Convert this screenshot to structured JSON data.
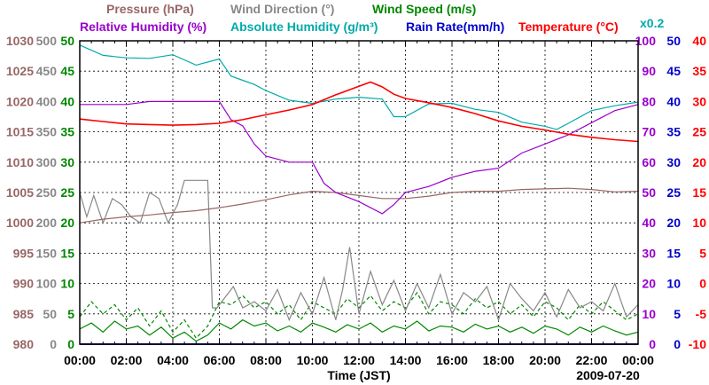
{
  "chart_data": {
    "type": "line",
    "date": "2009-07-20",
    "xlabel": "Time (JST)",
    "x_ticks": [
      "00:00",
      "02:00",
      "04:00",
      "06:00",
      "08:00",
      "10:00",
      "12:00",
      "14:00",
      "16:00",
      "18:00",
      "20:00",
      "22:00",
      "00:00"
    ],
    "x_range_hours": [
      0,
      24
    ],
    "legend_row1": [
      {
        "text": "Pressure (hPa)",
        "color": "#996666"
      },
      {
        "text": "Wind Direction (°)",
        "color": "#888888"
      },
      {
        "text": "Wind Speed (m/s)",
        "color": "#008800"
      }
    ],
    "legend_row2": [
      {
        "text": "Relative Humidity (%)",
        "color": "#9900cc"
      },
      {
        "text": "Absolute Humidity (g/m³)",
        "color": "#00aaaa"
      },
      {
        "text": "Rain Rate(mm/h)",
        "color": "#0000cc"
      },
      {
        "text": "Temperature (°C)",
        "color": "#ff0000"
      }
    ],
    "absolute_humidity_scale_note": "x0.2",
    "axes": [
      {
        "name": "pressure",
        "label": "Pressure (hPa)",
        "color": "#996666",
        "range": [
          980,
          1030
        ],
        "ticks": [
          "980",
          "985",
          "990",
          "995",
          "1000",
          "1005",
          "1010",
          "1015",
          "1020",
          "1025",
          "1030"
        ]
      },
      {
        "name": "wind_direction",
        "label": "Wind Direction (°)",
        "color": "#888888",
        "range": [
          0,
          500
        ],
        "ticks": [
          "0",
          "50",
          "100",
          "150",
          "200",
          "250",
          "300",
          "350",
          "400",
          "450",
          "500"
        ]
      },
      {
        "name": "wind_speed",
        "label": "Wind Speed (m/s)",
        "color": "#008800",
        "range": [
          0,
          50
        ],
        "ticks": [
          "0",
          "5",
          "10",
          "15",
          "20",
          "25",
          "30",
          "35",
          "40",
          "45",
          "50"
        ]
      },
      {
        "name": "relative_humidity",
        "label": "Relative Humidity (%)",
        "color": "#9900cc",
        "range": [
          0,
          100
        ],
        "ticks": [
          "0",
          "10",
          "20",
          "30",
          "40",
          "50",
          "60",
          "70",
          "80",
          "90",
          "100"
        ]
      },
      {
        "name": "rain_rate",
        "label": "Rain Rate (mm/h)",
        "color": "#0000cc",
        "range": [
          0,
          50
        ],
        "ticks": [
          "0",
          "5",
          "10",
          "15",
          "20",
          "25",
          "30",
          "35",
          "40",
          "45",
          "50"
        ]
      },
      {
        "name": "temperature",
        "label": "Temperature (°C)",
        "color": "#ff0000",
        "range": [
          -10,
          40
        ],
        "ticks": [
          "-10",
          "-5",
          "0",
          "5",
          "10",
          "15",
          "20",
          "25",
          "30",
          "35",
          "40"
        ]
      }
    ],
    "series": [
      {
        "name": "Temperature",
        "axis": "temperature",
        "color": "#ff0000",
        "x": [
          0,
          1,
          2,
          3,
          4,
          5,
          6,
          7,
          8,
          9,
          10,
          11,
          12,
          12.5,
          13,
          13.5,
          14,
          15,
          16,
          17,
          18,
          19,
          20,
          21,
          22,
          23,
          24
        ],
        "values": [
          27.1,
          26.7,
          26.3,
          26.2,
          26.1,
          26.2,
          26.4,
          27.0,
          27.8,
          28.6,
          29.5,
          31.1,
          32.5,
          33.2,
          32.4,
          31.2,
          30.5,
          29.8,
          29.0,
          28.0,
          26.8,
          25.9,
          25.3,
          24.6,
          24.1,
          23.7,
          23.4
        ]
      },
      {
        "name": "Absolute Humidity (x0.2)",
        "axis": "temperature",
        "color": "#00aaaa",
        "x": [
          0,
          1,
          2,
          3,
          4,
          5,
          6,
          6.5,
          7,
          7.5,
          8,
          9,
          10,
          11,
          12,
          13,
          13.5,
          14,
          15,
          16,
          17,
          18,
          19,
          20,
          20.5,
          21,
          22,
          23,
          24
        ],
        "values": [
          39.3,
          37.6,
          37.2,
          37.1,
          37.7,
          36.0,
          37.0,
          34.2,
          33.5,
          32.8,
          31.8,
          30.2,
          29.7,
          30.4,
          30.7,
          30.4,
          27.5,
          27.5,
          29.6,
          29.7,
          28.7,
          28.2,
          26.6,
          25.9,
          25.4,
          26.4,
          28.5,
          29.3,
          29.9
        ]
      },
      {
        "name": "Relative Humidity",
        "axis": "relative_humidity",
        "color": "#9900cc",
        "x": [
          0,
          1,
          2,
          3,
          4,
          5,
          6,
          6.5,
          7,
          7.5,
          8,
          9,
          10,
          10.5,
          11,
          12,
          13,
          13.5,
          14,
          14.5,
          15,
          16,
          17,
          18,
          19,
          20,
          21,
          22,
          23,
          24
        ],
        "values": [
          79,
          79,
          79,
          80,
          80,
          80,
          80,
          74,
          72,
          66,
          62,
          60,
          60,
          53,
          50,
          47,
          43,
          46,
          50,
          51,
          52,
          55,
          57,
          58,
          63,
          66,
          69,
          73,
          77,
          79
        ]
      },
      {
        "name": "Pressure",
        "axis": "pressure",
        "color": "#996666",
        "x": [
          0,
          1,
          2,
          3,
          4,
          5,
          6,
          7,
          8,
          9,
          10,
          11,
          12,
          13,
          14,
          15,
          16,
          17,
          18,
          19,
          20,
          21,
          22,
          23,
          24
        ],
        "values": [
          1000,
          1000.6,
          1001.0,
          1001.3,
          1001.7,
          1002.0,
          1002.5,
          1003.1,
          1003.8,
          1004.6,
          1005.2,
          1005.0,
          1004.5,
          1004.0,
          1004.0,
          1004.4,
          1005.0,
          1005.2,
          1005.2,
          1005.5,
          1005.6,
          1005.7,
          1005.5,
          1005.1,
          1005.2
        ]
      },
      {
        "name": "Wind Direction",
        "axis": "wind_direction",
        "color": "#888888",
        "x": [
          0,
          0.3,
          0.6,
          1.0,
          1.4,
          1.8,
          2.2,
          2.6,
          3.0,
          3.4,
          3.8,
          4.2,
          4.5,
          4.8,
          5.0,
          5.2,
          5.5,
          5.7,
          5.9,
          6.2,
          6.6,
          7.0,
          7.5,
          8.0,
          8.5,
          9.0,
          9.5,
          10.0,
          10.5,
          11.0,
          11.3,
          11.6,
          12.0,
          12.5,
          13.0,
          13.5,
          14.0,
          14.5,
          15.0,
          15.5,
          16.0,
          16.5,
          17.0,
          17.5,
          18.0,
          18.5,
          19.0,
          19.5,
          20.0,
          20.5,
          21.0,
          21.5,
          22.0,
          22.5,
          23.0,
          23.5,
          24.0
        ],
        "values": [
          250,
          210,
          245,
          200,
          240,
          230,
          210,
          200,
          250,
          240,
          200,
          230,
          270,
          270,
          270,
          270,
          270,
          60,
          60,
          75,
          95,
          60,
          70,
          55,
          90,
          40,
          85,
          50,
          110,
          40,
          90,
          160,
          50,
          120,
          65,
          105,
          55,
          100,
          60,
          115,
          50,
          85,
          70,
          95,
          40,
          100,
          75,
          55,
          85,
          45,
          90,
          60,
          70,
          55,
          100,
          45,
          65
        ]
      },
      {
        "name": "Wind Speed",
        "axis": "wind_speed",
        "color": "#008800",
        "x": [
          0,
          0.5,
          1,
          1.5,
          2,
          2.5,
          3,
          3.5,
          4,
          4.5,
          5,
          5.5,
          6,
          6.5,
          7,
          7.5,
          8,
          8.5,
          9,
          9.5,
          10,
          10.5,
          11,
          11.5,
          12,
          12.5,
          13,
          13.5,
          14,
          14.5,
          15,
          15.5,
          16,
          16.5,
          17,
          17.5,
          18,
          18.5,
          19,
          19.5,
          20,
          20.5,
          21,
          21.5,
          22,
          22.5,
          23,
          23.5,
          24
        ],
        "values": [
          2.5,
          3.5,
          2.0,
          3.8,
          2.5,
          3.0,
          1.5,
          2.8,
          1.0,
          2.0,
          0.5,
          1.5,
          3.5,
          2.5,
          4.0,
          3.0,
          3.5,
          2.2,
          3.0,
          2.0,
          3.5,
          2.8,
          2.0,
          3.2,
          2.5,
          3.5,
          2.0,
          3.0,
          2.5,
          3.8,
          2.2,
          3.0,
          2.8,
          2.0,
          3.3,
          2.5,
          3.0,
          2.0,
          2.8,
          1.8,
          3.0,
          2.5,
          1.5,
          2.8,
          2.0,
          3.0,
          2.2,
          1.5,
          2.0
        ]
      },
      {
        "name": "Wind Speed (gust, dashed)",
        "axis": "wind_speed",
        "color": "#008800",
        "x": [
          0,
          0.5,
          1,
          1.5,
          2,
          2.5,
          3,
          3.5,
          4,
          4.5,
          5,
          5.5,
          6,
          6.5,
          7,
          7.5,
          8,
          8.5,
          9,
          9.5,
          10,
          10.5,
          11,
          11.5,
          12,
          12.5,
          13,
          13.5,
          14,
          14.5,
          15,
          15.5,
          16,
          16.5,
          17,
          17.5,
          18,
          18.5,
          19,
          19.5,
          20,
          20.5,
          21,
          21.5,
          22,
          22.5,
          23,
          23.5,
          24
        ],
        "values": [
          4.5,
          7.0,
          5.0,
          6.5,
          4.0,
          6.0,
          3.0,
          5.5,
          2.0,
          4.0,
          1.0,
          3.0,
          7.0,
          6.5,
          8.0,
          6.0,
          7.0,
          5.0,
          6.5,
          4.0,
          7.0,
          6.0,
          5.0,
          7.5,
          6.0,
          8.0,
          5.5,
          7.0,
          6.0,
          8.5,
          5.0,
          7.0,
          6.5,
          5.0,
          7.5,
          6.0,
          7.0,
          5.0,
          6.5,
          4.5,
          7.0,
          6.0,
          4.0,
          6.5,
          5.0,
          7.0,
          5.5,
          4.0,
          5.0
        ]
      },
      {
        "name": "Rain Rate",
        "axis": "rain_rate",
        "color": "#0000cc",
        "x": [
          0,
          24
        ],
        "values": [
          0,
          0
        ]
      }
    ],
    "grid": true
  }
}
